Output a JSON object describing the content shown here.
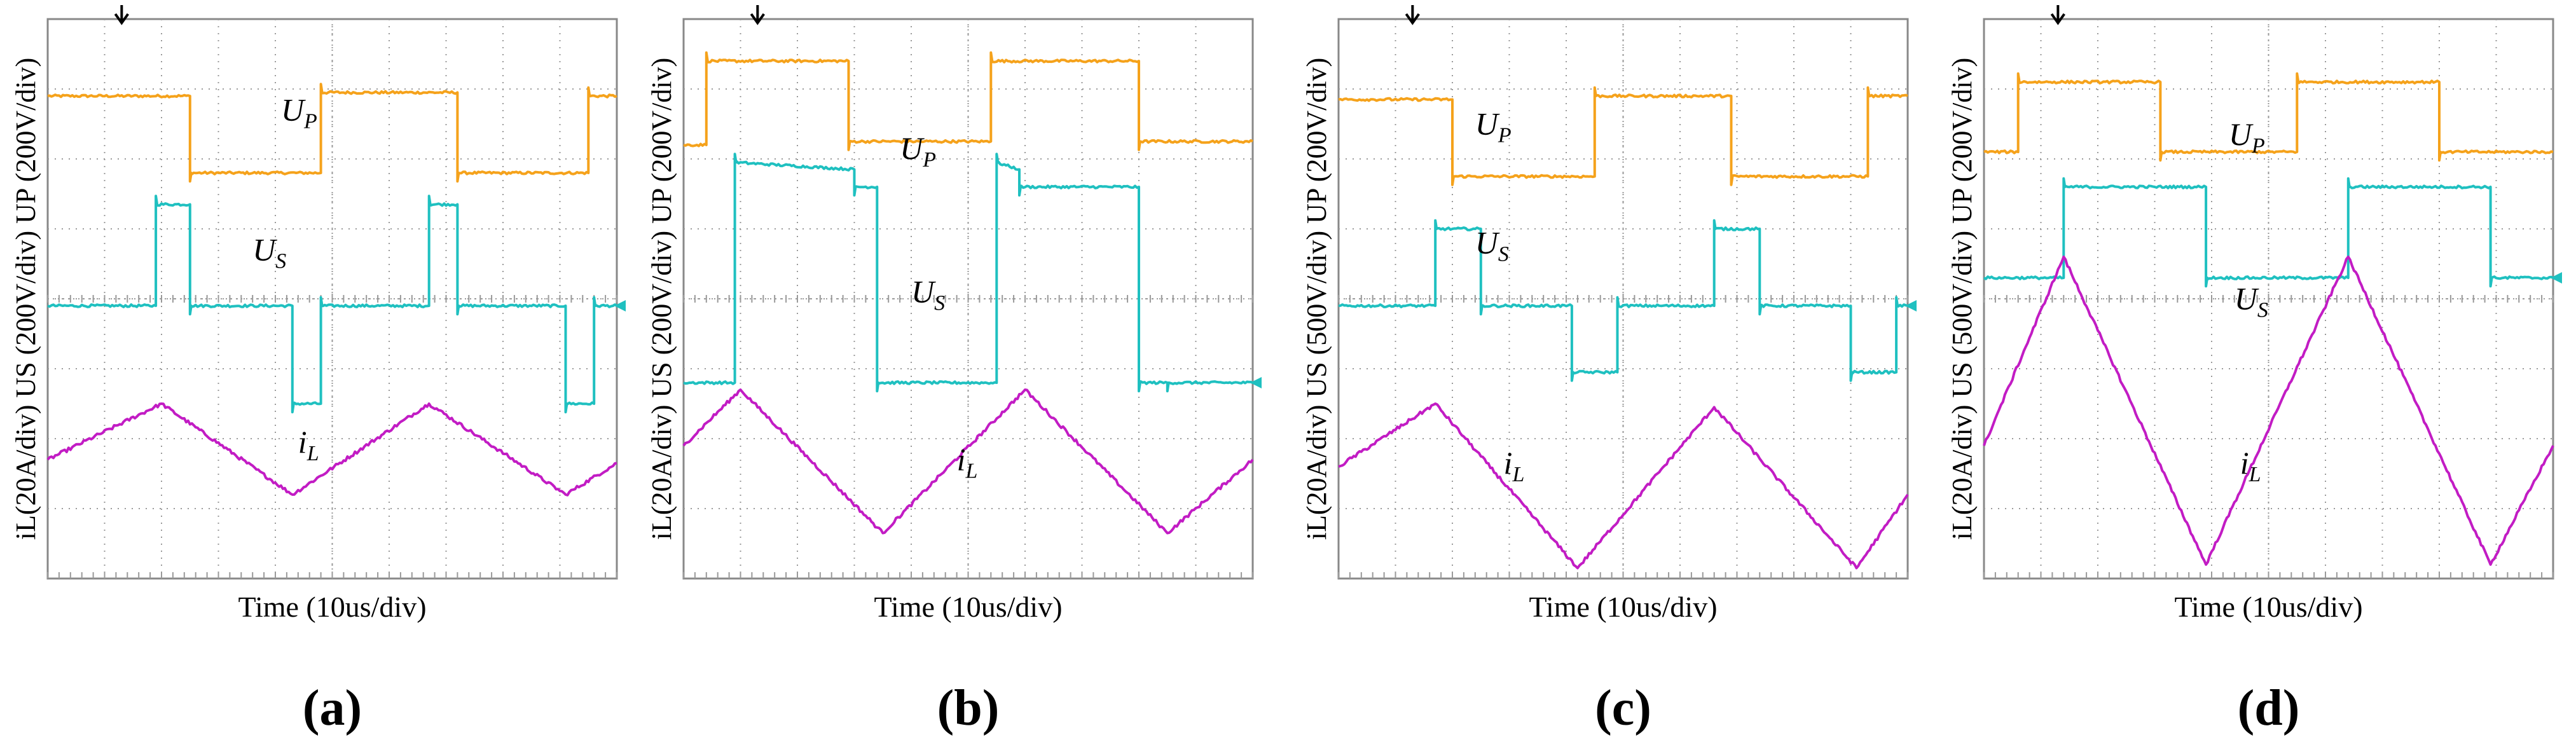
{
  "colors": {
    "up": "#F5A21B",
    "us": "#1FC0C0",
    "il": "#C21CC4",
    "grid": "#9a9a9a",
    "frame": "#888888"
  },
  "chart_data": [
    {
      "type": "line",
      "tag": "(a)",
      "ylabel": "iL(20A/div) US (200V/div) UP (200V/div)",
      "xlabel": "Time (10us/div)",
      "x_range": [
        0,
        100
      ],
      "y_range": [
        -4,
        4
      ],
      "grid": true,
      "series": [
        {
          "name": "UP",
          "label": "UP",
          "label_at": [
            41,
            2.55
          ],
          "x": [
            0,
            25,
            25,
            48,
            48,
            72,
            72,
            95,
            95,
            100
          ],
          "y": [
            2.9,
            2.9,
            1.8,
            1.8,
            2.95,
            2.95,
            1.8,
            1.8,
            2.9,
            2.9
          ]
        },
        {
          "name": "US",
          "label": "US",
          "label_at": [
            36,
            0.55
          ],
          "x": [
            0,
            19,
            19,
            25,
            25,
            43,
            43,
            48,
            48,
            67,
            67,
            72,
            72,
            91,
            91,
            96,
            96,
            100
          ],
          "y": [
            -0.1,
            -0.1,
            1.35,
            1.35,
            -0.1,
            -0.1,
            -1.5,
            -1.5,
            -0.1,
            -0.1,
            1.35,
            1.35,
            -0.1,
            -0.1,
            -1.5,
            -1.5,
            -0.1,
            -0.1
          ]
        },
        {
          "name": "iL",
          "label": "iL",
          "label_at": [
            44,
            -2.2
          ],
          "x": [
            0,
            20,
            43,
            67,
            91,
            100
          ],
          "y": [
            -2.3,
            -1.5,
            -2.8,
            -1.5,
            -2.8,
            -2.35
          ]
        }
      ]
    },
    {
      "type": "line",
      "tag": "(b)",
      "ylabel": "iL(20A/div) US (200V/div) UP (200V/div)",
      "xlabel": "Time (10us/div)",
      "x_range": [
        0,
        100
      ],
      "y_range": [
        -4,
        4
      ],
      "grid": true,
      "series": [
        {
          "name": "UP",
          "label": "UP",
          "label_at": [
            38,
            2.0
          ],
          "x": [
            0,
            4,
            4,
            29,
            29,
            54,
            54,
            80,
            80,
            100
          ],
          "y": [
            2.2,
            2.2,
            3.4,
            3.4,
            2.25,
            2.25,
            3.4,
            3.4,
            2.25,
            2.25
          ]
        },
        {
          "name": "US",
          "label": "US",
          "label_at": [
            40,
            -0.05
          ],
          "x": [
            0,
            9,
            9,
            30,
            30,
            34,
            34,
            55,
            55,
            59,
            59,
            80,
            80,
            85,
            85,
            100
          ],
          "y": [
            -1.2,
            -1.2,
            1.95,
            1.85,
            1.6,
            1.6,
            -1.2,
            -1.2,
            1.95,
            1.85,
            1.6,
            1.6,
            -1.2,
            -1.2,
            -1.2,
            -1.2
          ]
        },
        {
          "name": "iL",
          "label": "iL",
          "label_at": [
            48,
            -2.45
          ],
          "x": [
            0,
            10,
            35,
            60,
            85,
            100
          ],
          "y": [
            -2.1,
            -1.3,
            -3.35,
            -1.3,
            -3.35,
            -2.3
          ]
        }
      ]
    },
    {
      "type": "line",
      "tag": "(c)",
      "ylabel": "iL(20A/div) US (500V/div) UP (200V/div)",
      "xlabel": "Time (10us/div)",
      "x_range": [
        0,
        100
      ],
      "y_range": [
        -4,
        4
      ],
      "grid": true,
      "series": [
        {
          "name": "UP",
          "label": "UP",
          "label_at": [
            24,
            2.35
          ],
          "x": [
            0,
            20,
            20,
            45,
            45,
            69,
            69,
            93,
            93,
            100
          ],
          "y": [
            2.85,
            2.85,
            1.75,
            1.75,
            2.9,
            2.9,
            1.75,
            1.75,
            2.9,
            2.9
          ]
        },
        {
          "name": "US",
          "label": "US",
          "label_at": [
            24,
            0.65
          ],
          "x": [
            0,
            17,
            17,
            25,
            25,
            41,
            41,
            49,
            49,
            66,
            66,
            74,
            74,
            90,
            90,
            98,
            98,
            100
          ],
          "y": [
            -0.1,
            -0.1,
            1.0,
            1.0,
            -0.1,
            -0.1,
            -1.05,
            -1.05,
            -0.1,
            -0.1,
            1.0,
            1.0,
            -0.1,
            -0.1,
            -1.05,
            -1.05,
            -0.1,
            -0.1
          ]
        },
        {
          "name": "iL",
          "label": "iL",
          "label_at": [
            29,
            -2.5
          ],
          "x": [
            0,
            17,
            42,
            66,
            91,
            100
          ],
          "y": [
            -2.4,
            -1.5,
            -3.85,
            -1.55,
            -3.85,
            -2.8
          ]
        }
      ]
    },
    {
      "type": "line",
      "tag": "(d)",
      "ylabel": "iL(20A/div) US (500V/div) UP (200V/div)",
      "xlabel": "Time (10us/div)",
      "x_range": [
        0,
        100
      ],
      "y_range": [
        -4,
        4
      ],
      "grid": true,
      "series": [
        {
          "name": "UP",
          "label": "UP",
          "label_at": [
            43,
            2.2
          ],
          "x": [
            0,
            6,
            6,
            31,
            31,
            55,
            55,
            80,
            80,
            100
          ],
          "y": [
            2.1,
            2.1,
            3.1,
            3.1,
            2.1,
            2.1,
            3.1,
            3.1,
            2.1,
            2.1
          ]
        },
        {
          "name": "US",
          "label": "US",
          "label_at": [
            44,
            -0.15
          ],
          "x": [
            0,
            14,
            14,
            39,
            39,
            64,
            64,
            89,
            89,
            100
          ],
          "y": [
            0.3,
            0.3,
            1.6,
            1.6,
            0.3,
            0.3,
            1.6,
            1.6,
            0.3,
            0.3
          ]
        },
        {
          "name": "iL",
          "label": "iL",
          "label_at": [
            45,
            -2.5
          ],
          "x": [
            0,
            14,
            39,
            64,
            89,
            100
          ],
          "y": [
            -2.1,
            0.6,
            -3.8,
            0.6,
            -3.8,
            -2.1
          ]
        }
      ]
    }
  ]
}
